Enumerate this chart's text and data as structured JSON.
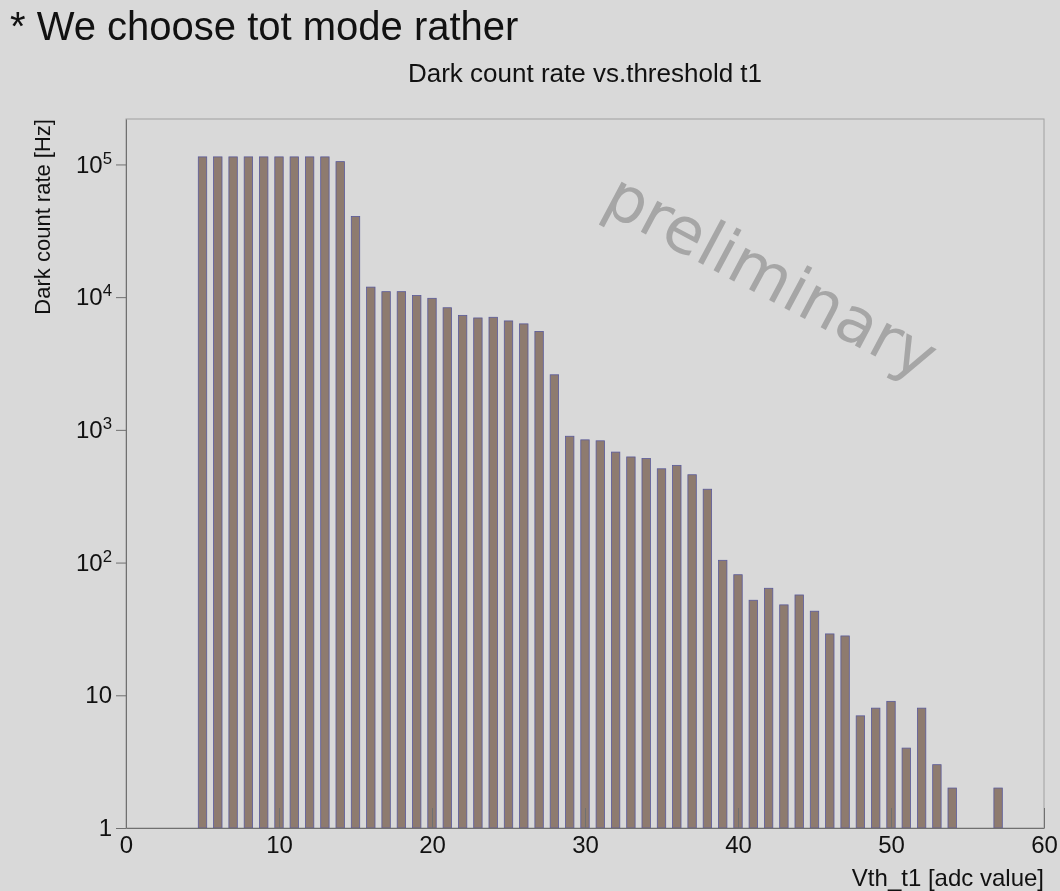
{
  "chart_data": {
    "type": "bar",
    "title": "Dark count rate vs.threshold t1",
    "xlabel": "Vth_t1 [adc value]",
    "ylabel": "Dark count rate [Hz]",
    "annotations": [
      "* We choose tot mode rather",
      "preliminary"
    ],
    "x": [
      5,
      6,
      7,
      8,
      9,
      10,
      11,
      12,
      13,
      14,
      15,
      16,
      17,
      18,
      19,
      20,
      21,
      22,
      23,
      24,
      25,
      26,
      27,
      28,
      29,
      30,
      31,
      32,
      33,
      34,
      35,
      36,
      37,
      38,
      39,
      40,
      41,
      42,
      43,
      44,
      45,
      46,
      47,
      48,
      49,
      50,
      51,
      52,
      53,
      54,
      57
    ],
    "values": [
      114000,
      114000,
      114000,
      114000,
      114000,
      114000,
      114000,
      114000,
      114000,
      105000,
      40600,
      11900,
      11000,
      11000,
      10300,
      9800,
      8320,
      7290,
      6970,
      7050,
      6620,
      6290,
      5520,
      2600,
      895,
      841,
      827,
      680,
      625,
      608,
      509,
      540,
      459,
      357,
      104,
      81,
      52,
      64,
      48,
      57,
      43,
      29,
      28,
      7,
      8,
      9,
      4,
      8,
      3,
      2,
      2
    ],
    "color": "#8e7b6f",
    "log": true,
    "xlim": [
      0,
      60
    ],
    "xticks": [
      0,
      10,
      20,
      30,
      40,
      50,
      60
    ],
    "ylim": [
      1,
      220000
    ],
    "yticks": [
      1,
      10,
      {
        "value": 100,
        "label": "10$^{2}$"
      },
      {
        "value": 1000,
        "label": "10$^{3}$"
      },
      {
        "value": 10000,
        "label": "10$^{4}$"
      },
      {
        "value": 100000,
        "label": "10$^{5}$"
      }
    ]
  }
}
